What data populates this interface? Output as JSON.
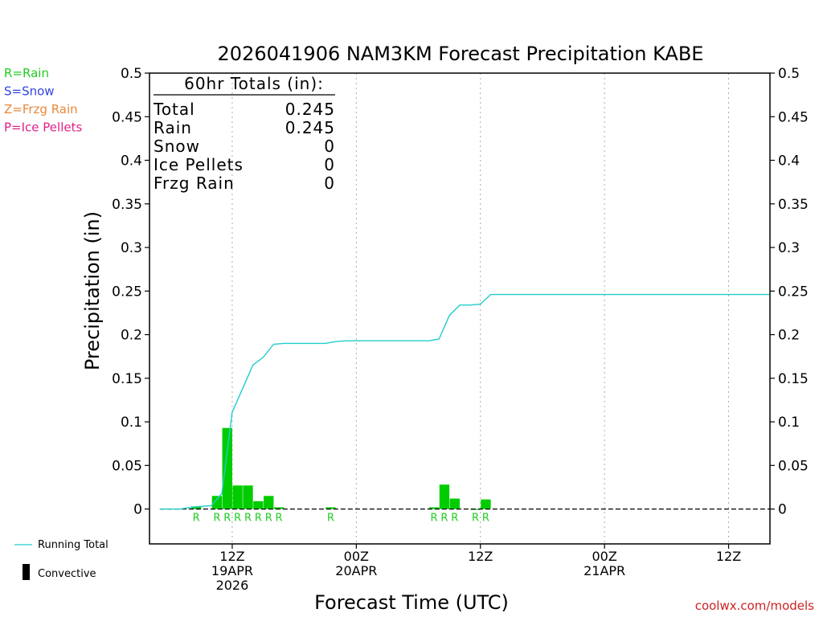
{
  "chart_data": {
    "type": "bar",
    "title": "2026041906 NAM3KM Forecast Precipitation KABE",
    "xlabel": "Forecast Time (UTC)",
    "ylabel": "Precipitation (in)",
    "ylim": [
      -0.04,
      0.5
    ],
    "xlim": [
      4,
      64
    ],
    "yticks": [
      "0",
      "0.05",
      "0.1",
      "0.15",
      "0.2",
      "0.25",
      "0.3",
      "0.35",
      "0.4",
      "0.45",
      "0.5"
    ],
    "ytick_values": [
      0,
      0.05,
      0.1,
      0.15,
      0.2,
      0.25,
      0.3,
      0.35,
      0.4,
      0.45,
      0.5
    ],
    "xticks": [
      {
        "hour": 12,
        "lines": [
          "12Z",
          "19APR",
          "2026"
        ]
      },
      {
        "hour": 24,
        "lines": [
          "00Z",
          "20APR"
        ]
      },
      {
        "hour": 36,
        "lines": [
          "12Z"
        ]
      },
      {
        "hour": 48,
        "lines": [
          "00Z",
          "21APR"
        ]
      },
      {
        "hour": 60,
        "lines": [
          "12Z"
        ]
      }
    ],
    "grid": "vertical dotted at major x ticks",
    "legend": {
      "types": [
        {
          "text": "R=Rain",
          "color": "#22cc22"
        },
        {
          "text": "S=Snow",
          "color": "#3344dd"
        },
        {
          "text": "Z=Frzg Rain",
          "color": "#e8883a"
        },
        {
          "text": "P=Ice Pellets",
          "color": "#dd2288"
        }
      ],
      "running_total": "Running Total",
      "convective": "Convective"
    },
    "totals": {
      "header": "60hr Totals (in):",
      "rows": [
        {
          "label": "Total",
          "value": "0.245"
        },
        {
          "label": "Rain",
          "value": "0.245"
        },
        {
          "label": "Snow",
          "value": "0"
        },
        {
          "label": "Ice Pellets",
          "value": "0"
        },
        {
          "label": "Frzg Rain",
          "value": "0"
        }
      ]
    },
    "bars": [
      {
        "hour": 9,
        "value": 0.003,
        "type": "R"
      },
      {
        "hour": 11,
        "value": 0.015,
        "type": "R"
      },
      {
        "hour": 12,
        "value": 0.093,
        "type": "R"
      },
      {
        "hour": 13,
        "value": 0.027,
        "type": "R"
      },
      {
        "hour": 14,
        "value": 0.027,
        "type": "R"
      },
      {
        "hour": 15,
        "value": 0.009,
        "type": "R"
      },
      {
        "hour": 16,
        "value": 0.015,
        "type": "R"
      },
      {
        "hour": 17,
        "value": 0.002,
        "type": "R"
      },
      {
        "hour": 22,
        "value": 0.002,
        "type": "R"
      },
      {
        "hour": 32,
        "value": 0.002,
        "type": "R"
      },
      {
        "hour": 33,
        "value": 0.028,
        "type": "R"
      },
      {
        "hour": 34,
        "value": 0.012,
        "type": "R"
      },
      {
        "hour": 36,
        "value": 0.0,
        "type": "R"
      },
      {
        "hour": 37,
        "value": 0.011,
        "type": "R"
      }
    ],
    "running_total": {
      "name": "Running Total",
      "color": "#22cccc",
      "hours": [
        5,
        6,
        7,
        8,
        9,
        10,
        11,
        12,
        13,
        14,
        15,
        16,
        17,
        18,
        19,
        20,
        21,
        22,
        23,
        24,
        25,
        26,
        27,
        28,
        29,
        30,
        31,
        32,
        33,
        34,
        35,
        36,
        37,
        38,
        64
      ],
      "values": [
        0,
        0,
        0,
        0.002,
        0.003,
        0.004,
        0.018,
        0.111,
        0.138,
        0.165,
        0.174,
        0.189,
        0.19,
        0.19,
        0.19,
        0.19,
        0.19,
        0.192,
        0.193,
        0.193,
        0.193,
        0.193,
        0.193,
        0.193,
        0.193,
        0.193,
        0.193,
        0.195,
        0.222,
        0.234,
        0.234,
        0.235,
        0.246,
        0.246,
        0.246
      ]
    },
    "footer": "coolwx.com/models"
  }
}
